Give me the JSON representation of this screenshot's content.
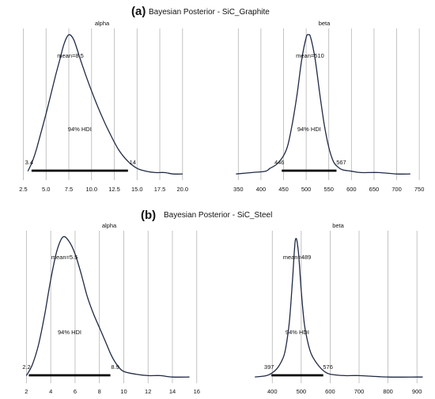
{
  "panels": [
    {
      "label": "(a)",
      "title": "Bayesian Posterior - SiC_Graphite"
    },
    {
      "label": "(b)",
      "title": "Bayesian Posterior - SiC_Steel"
    }
  ],
  "chart_data": [
    {
      "type": "area",
      "panel": "(a)",
      "title": "alpha",
      "xlim": [
        1.5,
        20.8
      ],
      "xticks": [
        2.5,
        5.0,
        7.5,
        10.0,
        12.5,
        15.0,
        17.5,
        20.0
      ],
      "xtick_labels": [
        "2.5",
        "5.0",
        "7.5",
        "10.0",
        "12.5",
        "15.0",
        "17.5",
        "20.0"
      ],
      "grid": "vertical",
      "mean_label": "mean=8.5",
      "hdi_label": "94% HDI",
      "hdi": [
        3.4,
        14
      ],
      "hdi_labels": [
        "3.4",
        "14"
      ],
      "curve": {
        "x": [
          3.0,
          3.5,
          4.0,
          5.0,
          6.0,
          6.5,
          7.0,
          7.5,
          8.0,
          8.5,
          9.0,
          10.0,
          11.0,
          12.0,
          13.0,
          14.0,
          15.0,
          16.0,
          17.0,
          18.0,
          19.0,
          20.0
        ],
        "y": [
          0.03,
          0.1,
          0.2,
          0.44,
          0.7,
          0.82,
          0.94,
          1.0,
          0.97,
          0.88,
          0.78,
          0.6,
          0.44,
          0.3,
          0.18,
          0.1,
          0.05,
          0.03,
          0.02,
          0.02,
          0.01,
          0.01
        ]
      }
    },
    {
      "type": "area",
      "panel": "(a)",
      "title": "beta",
      "xlim": [
        325,
        755
      ],
      "xticks": [
        350,
        400,
        450,
        500,
        550,
        600,
        650,
        700,
        750
      ],
      "xtick_labels": [
        "350",
        "400",
        "450",
        "500",
        "550",
        "600",
        "650",
        "700",
        "750"
      ],
      "grid": "vertical",
      "mean_label": "mean=510",
      "hdi_label": "94% HDI",
      "hdi": [
        446,
        567
      ],
      "hdi_labels": [
        "446",
        "567"
      ],
      "curve": {
        "x": [
          345,
          380,
          410,
          420,
          435,
          450,
          460,
          470,
          480,
          490,
          500,
          505,
          510,
          520,
          530,
          540,
          550,
          560,
          570,
          580,
          600,
          620,
          660,
          700,
          730
        ],
        "y": [
          0.01,
          0.02,
          0.03,
          0.05,
          0.08,
          0.14,
          0.22,
          0.38,
          0.58,
          0.82,
          0.98,
          1.0,
          0.98,
          0.82,
          0.58,
          0.36,
          0.2,
          0.1,
          0.06,
          0.04,
          0.03,
          0.02,
          0.02,
          0.01,
          0.01
        ]
      }
    },
    {
      "type": "area",
      "panel": "(b)",
      "title": "alpha",
      "xlim": [
        1.0,
        16.6
      ],
      "xticks": [
        2,
        4,
        6,
        8,
        10,
        12,
        14,
        16
      ],
      "xtick_labels": [
        "2",
        "4",
        "6",
        "8",
        "10",
        "12",
        "14",
        "16"
      ],
      "grid": "vertical",
      "mean_label": "mean=5.5",
      "hdi_label": "94% HDI",
      "hdi": [
        2.2,
        8.9
      ],
      "hdi_labels": [
        "2.2",
        "8.9"
      ],
      "curve": {
        "x": [
          2.0,
          2.5,
          3.0,
          3.5,
          4.0,
          4.5,
          5.0,
          5.5,
          6.0,
          6.5,
          7.0,
          7.5,
          8.0,
          8.5,
          9.0,
          9.5,
          10.0,
          11.0,
          12.0,
          13.0,
          14.0,
          15.4
        ],
        "y": [
          0.02,
          0.1,
          0.24,
          0.45,
          0.7,
          0.9,
          1.0,
          0.97,
          0.88,
          0.74,
          0.58,
          0.46,
          0.36,
          0.26,
          0.16,
          0.09,
          0.05,
          0.03,
          0.02,
          0.02,
          0.01,
          0.01
        ]
      }
    },
    {
      "type": "area",
      "panel": "(b)",
      "title": "beta",
      "xlim": [
        320,
        935
      ],
      "xticks": [
        400,
        500,
        600,
        700,
        800,
        900
      ],
      "xtick_labels": [
        "400",
        "500",
        "600",
        "700",
        "800",
        "900"
      ],
      "grid": "vertical",
      "mean_label": "mean=489",
      "hdi_label": "94% HDI",
      "hdi": [
        397,
        576
      ],
      "hdi_labels": [
        "397",
        "576"
      ],
      "curve": {
        "x": [
          340,
          380,
          400,
          420,
          440,
          450,
          460,
          470,
          480,
          490,
          500,
          510,
          520,
          530,
          540,
          560,
          580,
          600,
          650,
          700,
          800,
          900,
          920
        ],
        "y": [
          0.01,
          0.02,
          0.04,
          0.08,
          0.16,
          0.26,
          0.42,
          0.7,
          0.98,
          0.9,
          0.62,
          0.4,
          0.28,
          0.2,
          0.15,
          0.09,
          0.05,
          0.03,
          0.02,
          0.02,
          0.01,
          0.01,
          0.01
        ]
      }
    }
  ]
}
